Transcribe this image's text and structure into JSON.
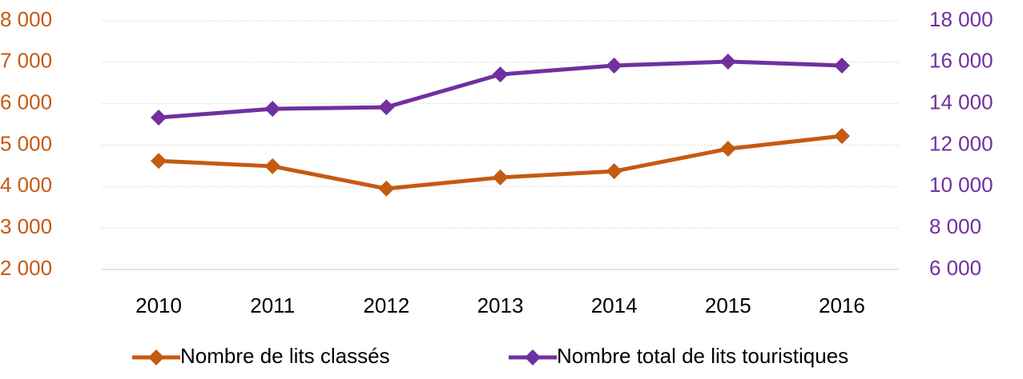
{
  "chart_data": {
    "type": "line",
    "categories": [
      "2010",
      "2011",
      "2012",
      "2013",
      "2014",
      "2015",
      "2016"
    ],
    "series": [
      {
        "name": "Nombre de lits classés",
        "color": "#c55a11",
        "values": [
          4620,
          4490,
          3950,
          4220,
          4370,
          4910,
          5220
        ]
      },
      {
        "name": "Nombre total de lits touristiques",
        "color": "#7030a0",
        "axis": "y2",
        "values": [
          13330,
          13750,
          13830,
          15410,
          15840,
          16030,
          15840
        ]
      }
    ],
    "ylim": [
      2000,
      8000
    ],
    "yticks": [
      {
        "value": 2000,
        "label": "2 000"
      },
      {
        "value": 3000,
        "label": "3 000"
      },
      {
        "value": 4000,
        "label": "4 000"
      },
      {
        "value": 5000,
        "label": "5 000"
      },
      {
        "value": 6000,
        "label": "6 000"
      },
      {
        "value": 7000,
        "label": "7 000"
      },
      {
        "value": 8000,
        "label": "8 000"
      }
    ],
    "y2lim": [
      6000,
      18000
    ],
    "y2ticks": [
      {
        "value": 6000,
        "label": "6 000"
      },
      {
        "value": 8000,
        "label": "8 000"
      },
      {
        "value": 10000,
        "label": "10 000"
      },
      {
        "value": 12000,
        "label": "12 000"
      },
      {
        "value": 14000,
        "label": "14 000"
      },
      {
        "value": 16000,
        "label": "16 000"
      },
      {
        "value": 18000,
        "label": "18 000"
      }
    ],
    "grid": true,
    "legend": "bottom"
  }
}
